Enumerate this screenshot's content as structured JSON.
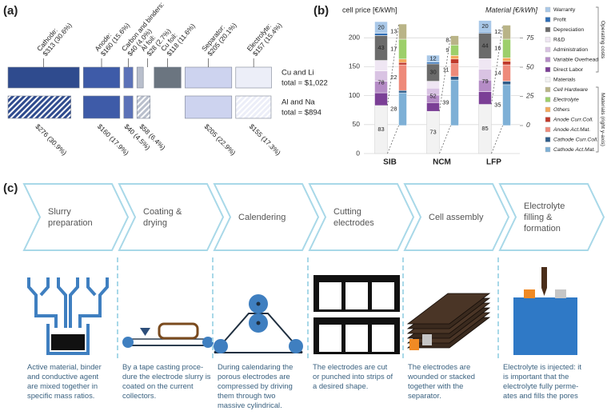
{
  "chart_data": [
    {
      "type": "segmented-bar",
      "label": "(a)",
      "colors": [
        "#2f4b8e",
        "#3e5ba8",
        "#5c72b8",
        "#b9bfcc",
        "#6b7580",
        "#cdd3ef",
        "#eceef8"
      ],
      "series": [
        {
          "name": "Cu and Li",
          "total_label": "total = $1,022",
          "values": [
            313,
            160,
            40,
            28,
            118,
            205,
            157
          ],
          "value_labels": [
            "Cathode: $313 (30.6%)",
            "Anode: $160 (15.6%)",
            "Carbon and binders: $40 (4.0%)",
            "Al foil: $28 (2.7%)",
            "Cu foil: $118 (11.6%)",
            "Separator: $205 (20.1%)",
            "Electrolyte: $157 (15.4%)"
          ],
          "hatched": [
            false,
            false,
            false,
            false,
            false,
            false,
            false
          ]
        },
        {
          "name": "Al and Na",
          "total_label": "total = $894",
          "values": [
            276,
            160,
            40,
            58,
            null,
            205,
            155
          ],
          "value_labels": [
            "$276 (30.9%)",
            "$160 (17.9%)",
            "$40 (4.5%)",
            "$58 (6.4%)",
            null,
            "$205 (22.9%)",
            "$155 (17.3%)"
          ],
          "hatched": [
            true,
            false,
            false,
            true,
            null,
            false,
            true
          ]
        }
      ]
    },
    {
      "type": "stacked-bar-dual",
      "label": "(b)",
      "ylabel": "cell price [€/kWh]",
      "y2label": "Material [€/kWh]",
      "categories": [
        "SIB",
        "NCM",
        "LFP"
      ],
      "ylim": [
        0,
        235
      ],
      "yticks": [
        0,
        50,
        100,
        150,
        200
      ],
      "y2lim": [
        -24,
        92.5
      ],
      "y2ticks": [
        0,
        25,
        50,
        75
      ],
      "grid": true,
      "series": [
        {
          "name": "Materials",
          "color": "#f2f2f2",
          "values": [
            83,
            73,
            85
          ],
          "labeled": true
        },
        {
          "name": "Direct Labor",
          "color": "#7b3f96",
          "values": [
            22,
            15,
            22
          ],
          "group": 0,
          "summed": true
        },
        {
          "name": "Variable Overhead",
          "color": "#b58cc6",
          "values": [
            20,
            13,
            20
          ],
          "group": 0,
          "summed": true
        },
        {
          "name": "Administration",
          "color": "#d9c3e3",
          "values": [
            18,
            12,
            19
          ],
          "group": 0,
          "summed": true
        },
        {
          "name": "R&D",
          "color": "#efe6f3",
          "values": [
            18,
            12,
            18
          ],
          "group": 0,
          "summed": true
        },
        {
          "name": "Depreciation",
          "color": "#6b6b6b",
          "values": [
            43,
            30,
            44
          ],
          "group": 0,
          "labeled": true
        },
        {
          "name": "Profit",
          "color": "#2e6db5",
          "values": [
            4,
            3,
            2
          ],
          "group": 0
        },
        {
          "name": "Warranty",
          "color": "#a9c8e8",
          "values": [
            20,
            12,
            20
          ],
          "group": 0,
          "labeled": true
        },
        {
          "name": "Cathode Act.Mat.",
          "color": "#7eb0d6",
          "values": [
            28,
            39,
            35
          ],
          "axis": "y2",
          "group": 1,
          "labeled": true
        },
        {
          "name": "Cathode Curr.Coll.",
          "color": "#2f5d8a",
          "values": [
            2,
            3,
            3
          ],
          "axis": "y2",
          "group": 1
        },
        {
          "name": "Anode Act.Mat.",
          "color": "#ee8a7a",
          "values": [
            22,
            11,
            14
          ],
          "axis": "y2",
          "group": 1,
          "labeled": true
        },
        {
          "name": "Anode Curr.Coll.",
          "color": "#c0392b",
          "values": [
            2,
            4,
            3
          ],
          "axis": "y2",
          "group": 1
        },
        {
          "name": "Others",
          "color": "#f3a85b",
          "values": [
            3,
            3,
            3
          ],
          "axis": "y2",
          "group": 1
        },
        {
          "name": "Electrolyte",
          "color": "#9dcf6a",
          "values": [
            17,
            9,
            16
          ],
          "axis": "y2",
          "group": 1,
          "labeled": true
        },
        {
          "name": "Cell Hardware",
          "color": "#b9b487",
          "values": [
            13,
            8,
            12
          ],
          "axis": "y2",
          "group": 1,
          "labeled": true
        }
      ],
      "operating_sums": [
        78,
        52,
        79
      ],
      "legend_groups": [
        "Operating costs",
        "Materials (right y-axis)"
      ]
    }
  ],
  "process": {
    "label": "(c)",
    "steps": [
      {
        "title": "Slurry\npreparation",
        "description": "Active material, binder\nand conductive agent\nare mixed together in\nspecific mass ratios."
      },
      {
        "title": "Coating &\ndrying",
        "description": "By a tape casting proce-\ndure the electrode slurry is\ncoated on the current\ncollectors."
      },
      {
        "title": "Calendering",
        "description": "During calendaring the\nporous electrodes are\ncompressed by driving\nthem through two\nmassive cylindrical."
      },
      {
        "title": "Cutting\nelectrodes",
        "description": "The electrodes are cut\nor punched into strips of\na desired shape."
      },
      {
        "title": "Cell assembly",
        "description": "The electrodes are\nwounded or stacked\ntogether with the\nseparator."
      },
      {
        "title": "Electrolyte\nfilling &\nformation",
        "description": "Electrolyte is injected: it\nis important that the\nelectrolyte fully perme-\nates and fills the pores"
      }
    ]
  }
}
